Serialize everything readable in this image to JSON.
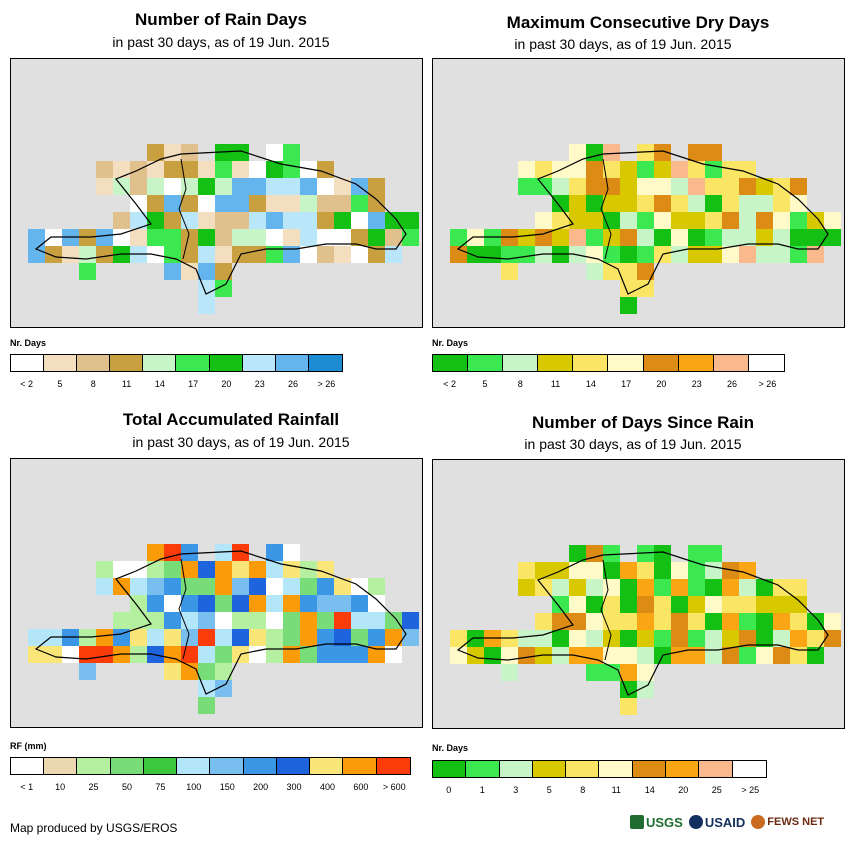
{
  "panels": [
    {
      "id": "rain-days",
      "title": "Number of Rain Days",
      "subtitle": "in past 30 days, as of 19 Jun. 2015",
      "legend_label": "Nr. Days",
      "legend_colors": [
        "#ffffff",
        "#f3dfbf",
        "#e0c08c",
        "#c9a040",
        "#c8f5c8",
        "#3ce850",
        "#13c013",
        "#b9e6f8",
        "#64b4ee",
        "#1e8cd2"
      ],
      "legend_ticks": [
        "< 2",
        "5",
        "8",
        "11",
        "14",
        "17",
        "20",
        "23",
        "26",
        "> 26"
      ],
      "cell_colors": [
        "#ffffff",
        "#f3dfbf",
        "#e0c08c",
        "#c9a040",
        "#c8f5c8",
        "#3ce850",
        "#13c013",
        "#b9e6f8",
        "#64b4ee"
      ]
    },
    {
      "id": "max-dry-days",
      "title": "Maximum Consecutive Dry Days",
      "subtitle": "in past 30 days, as of 19 Jun. 2015",
      "legend_label": "Nr. Days",
      "legend_colors": [
        "#13c013",
        "#3ce850",
        "#c8f5c8",
        "#d7c800",
        "#fae664",
        "#fffac8",
        "#dc8c14",
        "#faa514",
        "#fab98c",
        "#ffffff"
      ],
      "legend_ticks": [
        "< 2",
        "5",
        "8",
        "11",
        "14",
        "17",
        "20",
        "23",
        "26",
        "> 26"
      ],
      "cell_colors": [
        "#13c013",
        "#3ce850",
        "#c8f5c8",
        "#d7c800",
        "#fae664",
        "#fffac8",
        "#dc8c14",
        "#fab98c"
      ]
    },
    {
      "id": "total-rainfall",
      "title": "Total Accumulated Rainfall",
      "subtitle": "in past 30 days, as of 19 Jun. 2015",
      "legend_label": "RF (mm)",
      "legend_colors": [
        "#ffffff",
        "#ecd8b0",
        "#b4f0a0",
        "#78dc78",
        "#3cc83c",
        "#b4e6fa",
        "#78beee",
        "#3c96e6",
        "#1e64dc",
        "#fae678",
        "#fa9b0a",
        "#fa3c0a"
      ],
      "legend_ticks": [
        "< 1",
        "10",
        "25",
        "50",
        "75",
        "100",
        "150",
        "200",
        "300",
        "400",
        "600",
        "> 600"
      ],
      "cell_colors": [
        "#ffffff",
        "#b4f0a0",
        "#78dc78",
        "#b4e6fa",
        "#78beee",
        "#3c96e6",
        "#1e64dc",
        "#fae678",
        "#fa9b0a",
        "#fa3c0a"
      ]
    },
    {
      "id": "days-since-rain",
      "title": "Number of Days Since Rain",
      "subtitle": "in past 30 days, as of 19 Jun. 2015",
      "legend_label": "Nr. Days",
      "legend_colors": [
        "#13c013",
        "#3ce850",
        "#c8f5c8",
        "#d7c800",
        "#fae664",
        "#fffac8",
        "#dc8c14",
        "#faa514",
        "#fab98c",
        "#ffffff"
      ],
      "legend_ticks": [
        "0",
        "1",
        "3",
        "5",
        "8",
        "11",
        "14",
        "20",
        "25",
        "> 25"
      ],
      "cell_colors": [
        "#13c013",
        "#3ce850",
        "#c8f5c8",
        "#d7c800",
        "#fae664",
        "#fffac8",
        "#dc8c14",
        "#faa514"
      ]
    }
  ],
  "footer": "Map produced by USGS/EROS",
  "logos": [
    "USGS",
    "USAID",
    "FEWS NET"
  ]
}
